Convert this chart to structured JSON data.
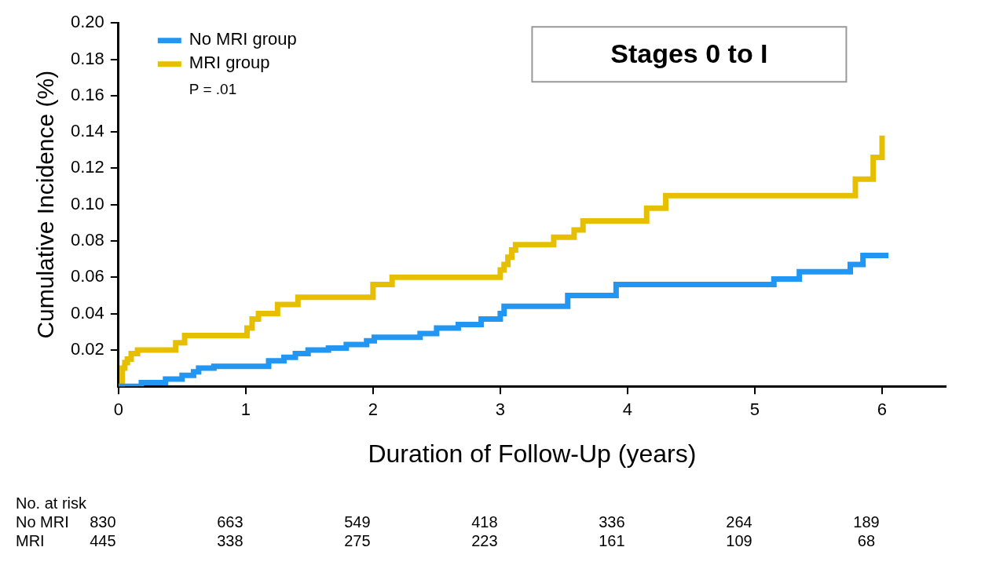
{
  "chart_data": {
    "type": "step",
    "title": "Stages 0 to I",
    "xlabel": "Duration of Follow-Up (years)",
    "ylabel": "Cumulative Incidence (%)",
    "xlim": [
      0,
      6.5
    ],
    "xticks": [
      0,
      1,
      2,
      3,
      4,
      5,
      6
    ],
    "ylim": [
      0,
      0.2
    ],
    "yticks": [
      0.02,
      0.04,
      0.06,
      0.08,
      {
        "value": 0.1,
        "label": "0.10"
      },
      0.12,
      0.14,
      0.16,
      0.18,
      {
        "value": 0.2,
        "label": "0.20"
      }
    ],
    "legend": "top left",
    "grid": false,
    "series": [
      {
        "name": "No MRI group",
        "color": "#2196f3",
        "x": [
          0,
          0.18,
          0.37,
          0.5,
          0.59,
          0.63,
          0.75,
          1.18,
          1.3,
          1.39,
          1.49,
          1.65,
          1.79,
          1.95,
          2.01,
          2.37,
          2.5,
          2.67,
          2.85,
          3.0,
          3.03,
          3.53,
          3.91,
          5.15,
          5.35,
          5.75,
          5.85,
          6.05
        ],
        "values": [
          0,
          0.002,
          0.004,
          0.006,
          0.008,
          0.01,
          0.011,
          0.014,
          0.016,
          0.018,
          0.02,
          0.021,
          0.023,
          0.025,
          0.027,
          0.029,
          0.032,
          0.034,
          0.037,
          0.04,
          0.044,
          0.05,
          0.056,
          0.059,
          0.063,
          0.067,
          0.072,
          0.072
        ]
      },
      {
        "name": "MRI group",
        "color": "#e6c000",
        "x": [
          0,
          0.03,
          0.05,
          0.07,
          0.1,
          0.15,
          0.45,
          0.52,
          1.01,
          1.05,
          1.1,
          1.25,
          1.41,
          2.0,
          2.15,
          3.0,
          3.03,
          3.06,
          3.09,
          3.12,
          3.42,
          3.58,
          3.65,
          4.15,
          4.3,
          5.79,
          5.93,
          6.0
        ],
        "values": [
          0,
          0.01,
          0.013,
          0.015,
          0.018,
          0.02,
          0.024,
          0.028,
          0.032,
          0.037,
          0.04,
          0.045,
          0.049,
          0.056,
          0.06,
          0.064,
          0.067,
          0.071,
          0.075,
          0.078,
          0.082,
          0.086,
          0.091,
          0.098,
          0.105,
          0.114,
          0.126,
          0.138
        ]
      }
    ],
    "annotations": [
      "P = .01",
      "No. at risk",
      "No MRI 830 663 549 418 336 264 189",
      "MRI 445 338 275 223 161 109 68"
    ]
  }
}
